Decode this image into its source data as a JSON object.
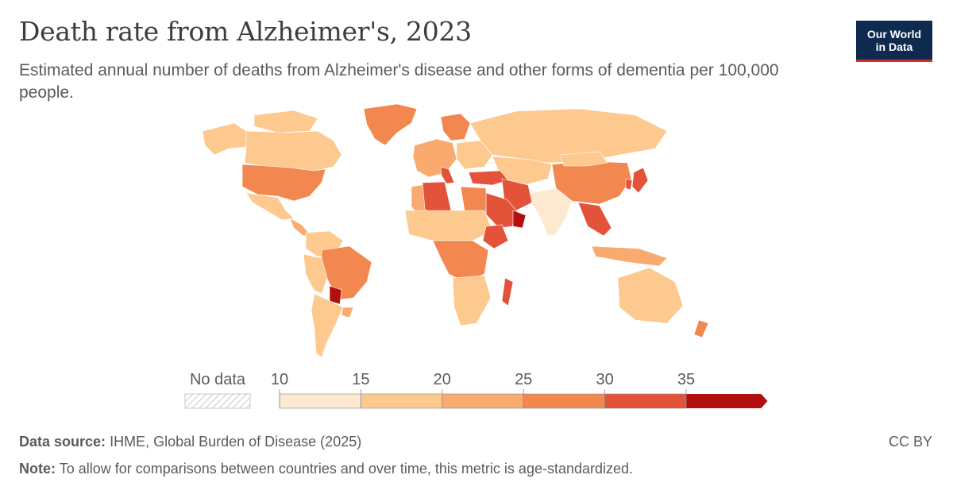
{
  "header": {
    "title": "Death rate from Alzheimer's, 2023",
    "subtitle": "Estimated annual number of deaths from Alzheimer's disease and other forms of dementia per 100,000 people.",
    "logo_line1": "Our World",
    "logo_line2": "in Data"
  },
  "legend": {
    "no_data_label": "No data",
    "ticks": [
      "10",
      "15",
      "20",
      "25",
      "30",
      "35"
    ],
    "bins": [
      {
        "from": 10,
        "to": 15,
        "color": "#fde9cf"
      },
      {
        "from": 15,
        "to": 20,
        "color": "#fdc98f"
      },
      {
        "from": 20,
        "to": 25,
        "color": "#f9aa6e"
      },
      {
        "from": 25,
        "to": 30,
        "color": "#f38750"
      },
      {
        "from": 30,
        "to": 35,
        "color": "#e2533a"
      },
      {
        "from": 35,
        "to": null,
        "color": "#b30f0f"
      }
    ]
  },
  "regions": [
    {
      "name": "Greenland",
      "color": "#f38750"
    },
    {
      "name": "Canada",
      "color": "#fdc98f"
    },
    {
      "name": "United States",
      "color": "#f38750"
    },
    {
      "name": "Mexico",
      "color": "#fdc98f"
    },
    {
      "name": "Brazil",
      "color": "#f38750"
    },
    {
      "name": "Argentina",
      "color": "#fdc98f"
    },
    {
      "name": "Russia",
      "color": "#fdc98f"
    },
    {
      "name": "China",
      "color": "#f38750"
    },
    {
      "name": "India",
      "color": "#fde9cf"
    },
    {
      "name": "Australia",
      "color": "#fdc98f"
    },
    {
      "name": "Algeria",
      "color": "#e2533a"
    },
    {
      "name": "Saudi Arabia",
      "color": "#e2533a"
    },
    {
      "name": "Iran",
      "color": "#e2533a"
    },
    {
      "name": "Turkey",
      "color": "#e2533a"
    },
    {
      "name": "Ethiopia",
      "color": "#e2533a"
    },
    {
      "name": "Madagascar",
      "color": "#e2533a"
    },
    {
      "name": "Japan",
      "color": "#e2533a"
    },
    {
      "name": "Oman",
      "color": "#b30f0f"
    },
    {
      "name": "Paraguay",
      "color": "#b30f0f"
    },
    {
      "name": "New Zealand",
      "color": "#f38750"
    }
  ],
  "footer": {
    "source_label": "Data source:",
    "source_text": "IHME, Global Burden of Disease (2025)",
    "note_label": "Note:",
    "note_text": "To allow for comparisons between countries and over time, this metric is age-standardized.",
    "license": "CC BY"
  }
}
